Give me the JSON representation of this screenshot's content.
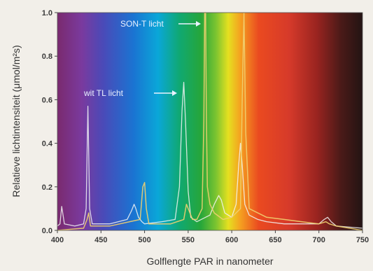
{
  "chart_data": {
    "type": "line",
    "title": "",
    "xlabel": "Golflengte PAR in nanometer",
    "ylabel": "Relatieve lichtintensiteit (μmol/m²s)",
    "xlim": [
      400,
      750
    ],
    "ylim": [
      0,
      1.0
    ],
    "xticks": [
      400,
      450,
      500,
      550,
      600,
      650,
      700,
      750
    ],
    "yticks": [
      "0.0",
      "0.2",
      "0.4",
      "0.6",
      "0.8",
      "1.0"
    ],
    "grid": false,
    "background": "visible spectrum gradient (violet to dark red)",
    "annotations": [
      {
        "text": "SON-T licht",
        "series": "SON-T licht"
      },
      {
        "text": "wit TL licht",
        "series": "wit TL licht"
      }
    ],
    "series": [
      {
        "name": "wit TL licht",
        "color": "#f3f3f3",
        "x": [
          400,
          403,
          405,
          408,
          420,
          430,
          433,
          435,
          437,
          440,
          460,
          480,
          485,
          488,
          490,
          493,
          497,
          500,
          520,
          535,
          540,
          543,
          545,
          547,
          550,
          553,
          560,
          575,
          580,
          585,
          588,
          592,
          600,
          605,
          608,
          610,
          612,
          615,
          620,
          630,
          640,
          660,
          680,
          700,
          706,
          710,
          714,
          720,
          750
        ],
        "values": [
          0.02,
          0.03,
          0.11,
          0.03,
          0.02,
          0.03,
          0.1,
          0.57,
          0.1,
          0.03,
          0.03,
          0.05,
          0.09,
          0.12,
          0.1,
          0.06,
          0.04,
          0.03,
          0.04,
          0.05,
          0.2,
          0.55,
          0.68,
          0.5,
          0.18,
          0.06,
          0.04,
          0.07,
          0.12,
          0.16,
          0.14,
          0.08,
          0.06,
          0.12,
          0.3,
          0.4,
          0.3,
          0.12,
          0.07,
          0.05,
          0.04,
          0.03,
          0.03,
          0.03,
          0.05,
          0.06,
          0.04,
          0.02,
          0.01
        ]
      },
      {
        "name": "SON-T licht",
        "color": "#f0d070",
        "x": [
          400,
          430,
          434,
          436,
          438,
          460,
          495,
          498,
          500,
          502,
          505,
          530,
          545,
          548,
          550,
          555,
          560,
          566,
          568,
          569,
          570,
          571,
          572,
          575,
          580,
          590,
          600,
          610,
          612,
          614,
          616,
          620,
          640,
          660,
          680,
          700,
          708,
          712,
          720,
          750
        ],
        "values": [
          0.0,
          0.01,
          0.05,
          0.08,
          0.02,
          0.02,
          0.05,
          0.2,
          0.22,
          0.1,
          0.03,
          0.03,
          0.05,
          0.12,
          0.1,
          0.05,
          0.05,
          0.1,
          0.5,
          1.0,
          1.0,
          0.5,
          0.2,
          0.12,
          0.08,
          0.05,
          0.06,
          0.1,
          0.6,
          1.0,
          0.45,
          0.1,
          0.06,
          0.05,
          0.04,
          0.03,
          0.04,
          0.03,
          0.02,
          0.0
        ]
      }
    ]
  }
}
